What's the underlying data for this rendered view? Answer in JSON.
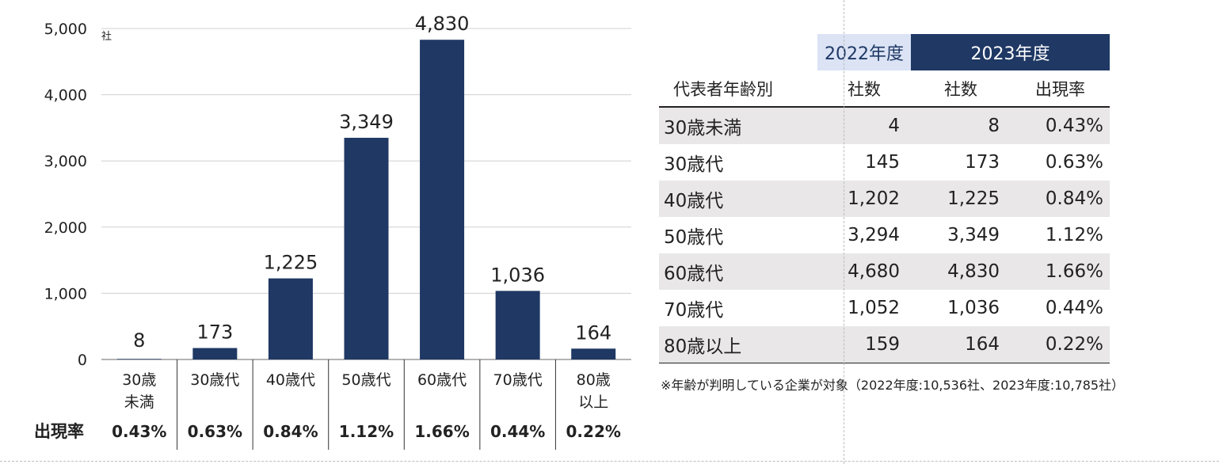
{
  "chart_data": {
    "type": "bar",
    "unit": "社",
    "categories": [
      "30歳\n未満",
      "30歳代",
      "40歳代",
      "50歳代",
      "60歳代",
      "70歳代",
      "80歳\n以上"
    ],
    "values": [
      8,
      173,
      1225,
      3349,
      4830,
      1036,
      164
    ],
    "value_labels": [
      "8",
      "173",
      "1,225",
      "3,349",
      "4,830",
      "1,036",
      "164"
    ],
    "ylim": [
      0,
      5000
    ],
    "yticks": [
      0,
      1000,
      2000,
      3000,
      4000,
      5000
    ],
    "ytick_labels": [
      "0",
      "1,000",
      "2,000",
      "3,000",
      "4,000",
      "5,000"
    ],
    "grid": true,
    "bar_color": "#1f3864",
    "rate_title": "出現率",
    "rates": [
      "0.43%",
      "0.63%",
      "0.84%",
      "1.12%",
      "1.66%",
      "0.44%",
      "0.22%"
    ]
  },
  "table": {
    "year_2022": "2022年度",
    "year_2023": "2023年度",
    "col_age": "代表者年齢別",
    "col_count_2022": "社数",
    "col_count_2023": "社数",
    "col_rate": "出現率",
    "rows": [
      {
        "age": "30歳未満",
        "c2022": "4",
        "c2023": "8",
        "rate": "0.43%"
      },
      {
        "age": "30歳代",
        "c2022": "145",
        "c2023": "173",
        "rate": "0.63%"
      },
      {
        "age": "40歳代",
        "c2022": "1,202",
        "c2023": "1,225",
        "rate": "0.84%"
      },
      {
        "age": "50歳代",
        "c2022": "3,294",
        "c2023": "3,349",
        "rate": "1.12%"
      },
      {
        "age": "60歳代",
        "c2022": "4,680",
        "c2023": "4,830",
        "rate": "1.66%"
      },
      {
        "age": "70歳代",
        "c2022": "1,052",
        "c2023": "1,036",
        "rate": "0.44%"
      },
      {
        "age": "80歳以上",
        "c2022": "159",
        "c2023": "164",
        "rate": "0.22%"
      }
    ]
  },
  "footnote": "※年齢が判明している企業が対象（2022年度:10,536社、2023年度:10,785社）"
}
